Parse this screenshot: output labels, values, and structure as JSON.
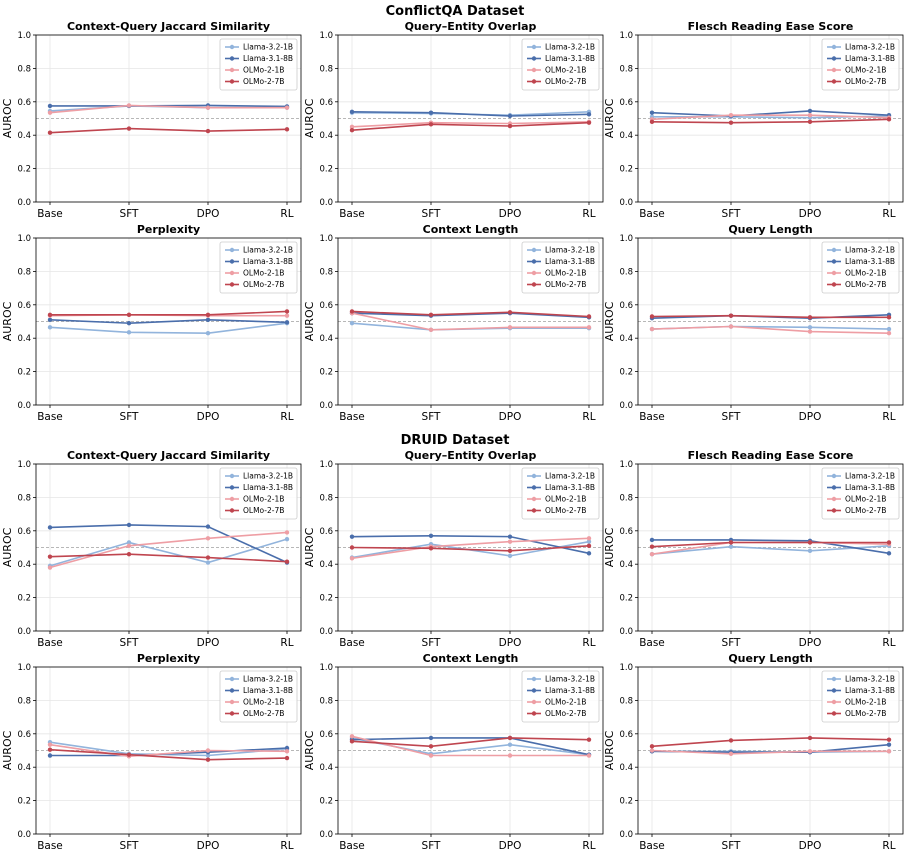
{
  "datasets": [
    {
      "title": "ConflictQA Dataset"
    },
    {
      "title": "DRUID Dataset"
    }
  ],
  "common": {
    "ylabel": "AUROC",
    "categories": [
      "Base",
      "SFT",
      "DPO",
      "RL"
    ],
    "yticks": [
      "0.0",
      "0.2",
      "0.4",
      "0.6",
      "0.8",
      "1.0"
    ],
    "series_names": [
      "Llama-3.2-1B",
      "Llama-3.1-8B",
      "OLMo-2-1B",
      "OLMo-2-7B"
    ],
    "series_colors": [
      "#92b4dc",
      "#4a6eab",
      "#ee9ea4",
      "#bf454f"
    ]
  },
  "chart_data": [
    {
      "type": "line",
      "dataset": "ConflictQA Dataset",
      "title": "Context-Query Jaccard Similarity",
      "ylabel": "AUROC",
      "ylim": [
        0,
        1
      ],
      "categories": [
        "Base",
        "SFT",
        "DPO",
        "RL"
      ],
      "reference_line": 0.5,
      "grid": true,
      "legend": "top-right",
      "series": [
        {
          "name": "Llama-3.2-1B",
          "values": [
            0.545,
            0.575,
            0.565,
            0.565
          ]
        },
        {
          "name": "Llama-3.1-8B",
          "values": [
            0.575,
            0.575,
            0.578,
            0.572
          ]
        },
        {
          "name": "OLMo-2-1B",
          "values": [
            0.535,
            0.578,
            0.565,
            0.565
          ]
        },
        {
          "name": "OLMo-2-7B",
          "values": [
            0.415,
            0.44,
            0.425,
            0.435
          ]
        }
      ]
    },
    {
      "type": "line",
      "dataset": "ConflictQA Dataset",
      "title": "Query–Entity Overlap",
      "ylabel": "AUROC",
      "ylim": [
        0,
        1
      ],
      "categories": [
        "Base",
        "SFT",
        "DPO",
        "RL"
      ],
      "reference_line": 0.5,
      "grid": true,
      "legend": "top-right",
      "series": [
        {
          "name": "Llama-3.2-1B",
          "values": [
            0.535,
            0.53,
            0.52,
            0.54
          ]
        },
        {
          "name": "Llama-3.1-8B",
          "values": [
            0.54,
            0.535,
            0.515,
            0.525
          ]
        },
        {
          "name": "OLMo-2-1B",
          "values": [
            0.45,
            0.475,
            0.47,
            0.48
          ]
        },
        {
          "name": "OLMo-2-7B",
          "values": [
            0.43,
            0.465,
            0.455,
            0.475
          ]
        }
      ]
    },
    {
      "type": "line",
      "dataset": "ConflictQA Dataset",
      "title": "Flesch Reading Ease Score",
      "ylabel": "AUROC",
      "ylim": [
        0,
        1
      ],
      "categories": [
        "Base",
        "SFT",
        "DPO",
        "RL"
      ],
      "reference_line": 0.5,
      "grid": true,
      "legend": "top-right",
      "series": [
        {
          "name": "Llama-3.2-1B",
          "values": [
            0.51,
            0.51,
            0.505,
            0.515
          ]
        },
        {
          "name": "Llama-3.1-8B",
          "values": [
            0.535,
            0.515,
            0.545,
            0.52
          ]
        },
        {
          "name": "OLMo-2-1B",
          "values": [
            0.495,
            0.52,
            0.52,
            0.505
          ]
        },
        {
          "name": "OLMo-2-7B",
          "values": [
            0.48,
            0.475,
            0.48,
            0.495
          ]
        }
      ]
    },
    {
      "type": "line",
      "dataset": "ConflictQA Dataset",
      "title": "Perplexity",
      "ylabel": "AUROC",
      "ylim": [
        0,
        1
      ],
      "categories": [
        "Base",
        "SFT",
        "DPO",
        "RL"
      ],
      "reference_line": 0.5,
      "grid": true,
      "legend": "top-right",
      "series": [
        {
          "name": "Llama-3.2-1B",
          "values": [
            0.465,
            0.435,
            0.43,
            0.49
          ]
        },
        {
          "name": "Llama-3.1-8B",
          "values": [
            0.51,
            0.49,
            0.51,
            0.495
          ]
        },
        {
          "name": "OLMo-2-1B",
          "values": [
            0.535,
            0.54,
            0.535,
            0.535
          ]
        },
        {
          "name": "OLMo-2-7B",
          "values": [
            0.54,
            0.54,
            0.54,
            0.56
          ]
        }
      ]
    },
    {
      "type": "line",
      "dataset": "ConflictQA Dataset",
      "title": "Context Length",
      "ylabel": "AUROC",
      "ylim": [
        0,
        1
      ],
      "categories": [
        "Base",
        "SFT",
        "DPO",
        "RL"
      ],
      "reference_line": 0.5,
      "grid": true,
      "legend": "top-right",
      "series": [
        {
          "name": "Llama-3.2-1B",
          "values": [
            0.49,
            0.45,
            0.46,
            0.46
          ]
        },
        {
          "name": "Llama-3.1-8B",
          "values": [
            0.55,
            0.535,
            0.55,
            0.525
          ]
        },
        {
          "name": "OLMo-2-1B",
          "values": [
            0.55,
            0.45,
            0.465,
            0.465
          ]
        },
        {
          "name": "OLMo-2-7B",
          "values": [
            0.56,
            0.54,
            0.555,
            0.53
          ]
        }
      ]
    },
    {
      "type": "line",
      "dataset": "ConflictQA Dataset",
      "title": "Query Length",
      "ylabel": "AUROC",
      "ylim": [
        0,
        1
      ],
      "categories": [
        "Base",
        "SFT",
        "DPO",
        "RL"
      ],
      "reference_line": 0.5,
      "grid": true,
      "legend": "top-right",
      "series": [
        {
          "name": "Llama-3.2-1B",
          "values": [
            0.455,
            0.47,
            0.465,
            0.455
          ]
        },
        {
          "name": "Llama-3.1-8B",
          "values": [
            0.52,
            0.535,
            0.52,
            0.54
          ]
        },
        {
          "name": "OLMo-2-1B",
          "values": [
            0.455,
            0.47,
            0.44,
            0.43
          ]
        },
        {
          "name": "OLMo-2-7B",
          "values": [
            0.53,
            0.535,
            0.525,
            0.525
          ]
        }
      ]
    },
    {
      "type": "line",
      "dataset": "DRUID Dataset",
      "title": "Context-Query Jaccard Similarity",
      "ylabel": "AUROC",
      "ylim": [
        0,
        1
      ],
      "categories": [
        "Base",
        "SFT",
        "DPO",
        "RL"
      ],
      "reference_line": 0.5,
      "grid": true,
      "legend": "top-right",
      "series": [
        {
          "name": "Llama-3.2-1B",
          "values": [
            0.39,
            0.53,
            0.41,
            0.55
          ]
        },
        {
          "name": "Llama-3.1-8B",
          "values": [
            0.62,
            0.635,
            0.625,
            0.41
          ]
        },
        {
          "name": "OLMo-2-1B",
          "values": [
            0.38,
            0.51,
            0.555,
            0.59
          ]
        },
        {
          "name": "OLMo-2-7B",
          "values": [
            0.445,
            0.46,
            0.44,
            0.415
          ]
        }
      ]
    },
    {
      "type": "line",
      "dataset": "DRUID Dataset",
      "title": "Query–Entity Overlap",
      "ylabel": "AUROC",
      "ylim": [
        0,
        1
      ],
      "categories": [
        "Base",
        "SFT",
        "DPO",
        "RL"
      ],
      "reference_line": 0.5,
      "grid": true,
      "legend": "top-right",
      "series": [
        {
          "name": "Llama-3.2-1B",
          "values": [
            0.44,
            0.52,
            0.45,
            0.535
          ]
        },
        {
          "name": "Llama-3.1-8B",
          "values": [
            0.565,
            0.57,
            0.565,
            0.465
          ]
        },
        {
          "name": "OLMo-2-1B",
          "values": [
            0.435,
            0.505,
            0.535,
            0.555
          ]
        },
        {
          "name": "OLMo-2-7B",
          "values": [
            0.5,
            0.495,
            0.48,
            0.51
          ]
        }
      ]
    },
    {
      "type": "line",
      "dataset": "DRUID Dataset",
      "title": "Flesch Reading Ease Score",
      "ylabel": "AUROC",
      "ylim": [
        0,
        1
      ],
      "categories": [
        "Base",
        "SFT",
        "DPO",
        "RL"
      ],
      "reference_line": 0.5,
      "grid": true,
      "legend": "top-right",
      "series": [
        {
          "name": "Llama-3.2-1B",
          "values": [
            0.46,
            0.505,
            0.48,
            0.51
          ]
        },
        {
          "name": "Llama-3.1-8B",
          "values": [
            0.545,
            0.545,
            0.54,
            0.465
          ]
        },
        {
          "name": "OLMo-2-1B",
          "values": [
            0.46,
            0.53,
            0.53,
            0.52
          ]
        },
        {
          "name": "OLMo-2-7B",
          "values": [
            0.505,
            0.53,
            0.53,
            0.53
          ]
        }
      ]
    },
    {
      "type": "line",
      "dataset": "DRUID Dataset",
      "title": "Perplexity",
      "ylabel": "AUROC",
      "ylim": [
        0,
        1
      ],
      "categories": [
        "Base",
        "SFT",
        "DPO",
        "RL"
      ],
      "reference_line": 0.5,
      "grid": true,
      "legend": "top-right",
      "series": [
        {
          "name": "Llama-3.2-1B",
          "values": [
            0.55,
            0.48,
            0.47,
            0.51
          ]
        },
        {
          "name": "Llama-3.1-8B",
          "values": [
            0.47,
            0.47,
            0.49,
            0.515
          ]
        },
        {
          "name": "OLMo-2-1B",
          "values": [
            0.535,
            0.465,
            0.5,
            0.495
          ]
        },
        {
          "name": "OLMo-2-7B",
          "values": [
            0.505,
            0.475,
            0.445,
            0.455
          ]
        }
      ]
    },
    {
      "type": "line",
      "dataset": "DRUID Dataset",
      "title": "Context Length",
      "ylabel": "AUROC",
      "ylim": [
        0,
        1
      ],
      "categories": [
        "Base",
        "SFT",
        "DPO",
        "RL"
      ],
      "reference_line": 0.5,
      "grid": true,
      "legend": "top-right",
      "series": [
        {
          "name": "Llama-3.2-1B",
          "values": [
            0.575,
            0.48,
            0.535,
            0.475
          ]
        },
        {
          "name": "Llama-3.1-8B",
          "values": [
            0.565,
            0.575,
            0.575,
            0.475
          ]
        },
        {
          "name": "OLMo-2-1B",
          "values": [
            0.585,
            0.47,
            0.47,
            0.47
          ]
        },
        {
          "name": "OLMo-2-7B",
          "values": [
            0.555,
            0.525,
            0.575,
            0.565
          ]
        }
      ]
    },
    {
      "type": "line",
      "dataset": "DRUID Dataset",
      "title": "Query Length",
      "ylabel": "AUROC",
      "ylim": [
        0,
        1
      ],
      "categories": [
        "Base",
        "SFT",
        "DPO",
        "RL"
      ],
      "reference_line": 0.5,
      "grid": true,
      "legend": "top-right",
      "series": [
        {
          "name": "Llama-3.2-1B",
          "values": [
            0.495,
            0.495,
            0.49,
            0.495
          ]
        },
        {
          "name": "Llama-3.1-8B",
          "values": [
            0.495,
            0.49,
            0.49,
            0.535
          ]
        },
        {
          "name": "OLMo-2-1B",
          "values": [
            0.5,
            0.48,
            0.495,
            0.495
          ]
        },
        {
          "name": "OLMo-2-7B",
          "values": [
            0.525,
            0.56,
            0.575,
            0.565
          ]
        }
      ]
    }
  ]
}
